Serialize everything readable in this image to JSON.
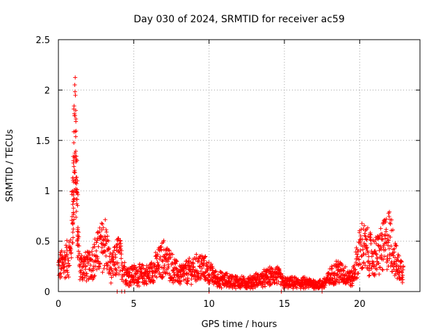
{
  "chart_data": {
    "type": "scatter",
    "title": "Day 030 of 2024, SRMTID for receiver ac59",
    "xlabel": "GPS time / hours",
    "ylabel": "SRMTID / TECUs",
    "xlim": [
      0,
      24
    ],
    "ylim": [
      0,
      2.5
    ],
    "grid": true,
    "marker": "+",
    "color": "#ff0000",
    "x_ticks": [
      0,
      5,
      10,
      15,
      20
    ],
    "x_tick_labels": [
      "0",
      "5",
      "10",
      "15",
      "20"
    ],
    "y_ticks": [
      0,
      0.5,
      1,
      1.5,
      2,
      2.5
    ],
    "y_tick_labels": [
      "0",
      "0.5",
      "1",
      "1.5",
      "2",
      "2.5"
    ],
    "envelope": [
      {
        "hour": 0.0,
        "y": 0.28
      },
      {
        "hour": 0.4,
        "y": 0.35
      },
      {
        "hour": 0.8,
        "y": 0.45
      },
      {
        "hour": 1.0,
        "y": 1.3
      },
      {
        "hour": 1.1,
        "y": 2.2
      },
      {
        "hour": 1.2,
        "y": 1.2
      },
      {
        "hour": 1.4,
        "y": 0.3
      },
      {
        "hour": 2.0,
        "y": 0.3
      },
      {
        "hour": 3.1,
        "y": 0.6
      },
      {
        "hour": 3.5,
        "y": 0.25
      },
      {
        "hour": 4.0,
        "y": 0.45
      },
      {
        "hour": 4.5,
        "y": 0.2
      },
      {
        "hour": 6.0,
        "y": 0.2
      },
      {
        "hour": 7.0,
        "y": 0.4
      },
      {
        "hour": 8.0,
        "y": 0.2
      },
      {
        "hour": 9.5,
        "y": 0.3
      },
      {
        "hour": 10.5,
        "y": 0.15
      },
      {
        "hour": 12.5,
        "y": 0.1
      },
      {
        "hour": 14.5,
        "y": 0.2
      },
      {
        "hour": 15.0,
        "y": 0.1
      },
      {
        "hour": 16.5,
        "y": 0.1
      },
      {
        "hour": 17.5,
        "y": 0.08
      },
      {
        "hour": 18.5,
        "y": 0.25
      },
      {
        "hour": 19.5,
        "y": 0.15
      },
      {
        "hour": 20.1,
        "y": 0.55
      },
      {
        "hour": 21.0,
        "y": 0.4
      },
      {
        "hour": 22.0,
        "y": 0.65
      },
      {
        "hour": 22.5,
        "y": 0.3
      },
      {
        "hour": 22.9,
        "y": 0.25
      }
    ],
    "zero_markers_hours": [
      3.9,
      4.2,
      4.4,
      10.0,
      14.8,
      17.5
    ]
  }
}
